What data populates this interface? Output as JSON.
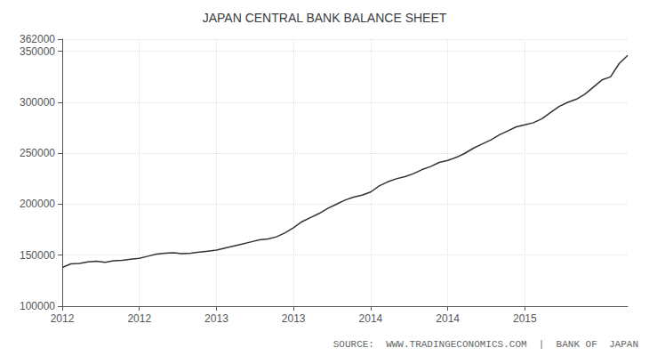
{
  "chart_data": {
    "type": "line",
    "title": "JAPAN CENTRAL BANK BALANCE SHEET",
    "annotations": [
      "SOURCE:  WWW.TRADINGECONOMICS.COM  |  BANK OF  JAPAN"
    ],
    "color": "#333333",
    "grid": true,
    "categories": [
      "2012",
      null,
      null,
      null,
      null,
      null,
      null,
      null,
      null,
      "2012",
      null,
      null,
      null,
      null,
      null,
      null,
      null,
      null,
      "2013",
      null,
      null,
      null,
      null,
      null,
      null,
      null,
      null,
      "2013",
      null,
      null,
      null,
      null,
      null,
      null,
      null,
      null,
      "2014",
      null,
      null,
      null,
      null,
      null,
      null,
      null,
      null,
      "2014",
      null,
      null,
      null,
      null,
      null,
      null,
      null,
      null,
      "2015",
      null,
      null,
      null,
      null,
      null,
      null,
      null,
      null,
      null,
      null,
      null,
      null
    ],
    "values": [
      138000,
      141500,
      142000,
      143500,
      144000,
      143000,
      144500,
      145000,
      146000,
      147000,
      149000,
      151000,
      152000,
      152500,
      151500,
      152000,
      153000,
      154000,
      155000,
      157000,
      159000,
      161000,
      163000,
      165000,
      166000,
      168000,
      172000,
      177000,
      183000,
      187000,
      191000,
      196000,
      200000,
      204000,
      207000,
      209000,
      212000,
      218000,
      222000,
      225000,
      227000,
      230000,
      234000,
      237000,
      241000,
      243000,
      246000,
      250000,
      255000,
      259000,
      263000,
      268000,
      272000,
      276000,
      278000,
      280000,
      284000,
      290000,
      296000,
      300000,
      303000,
      308000,
      315000,
      322000,
      325000,
      338000,
      346000
    ],
    "ylim": [
      100000,
      362000
    ],
    "yticks": [
      100000,
      150000,
      200000,
      250000,
      300000,
      350000
    ]
  }
}
